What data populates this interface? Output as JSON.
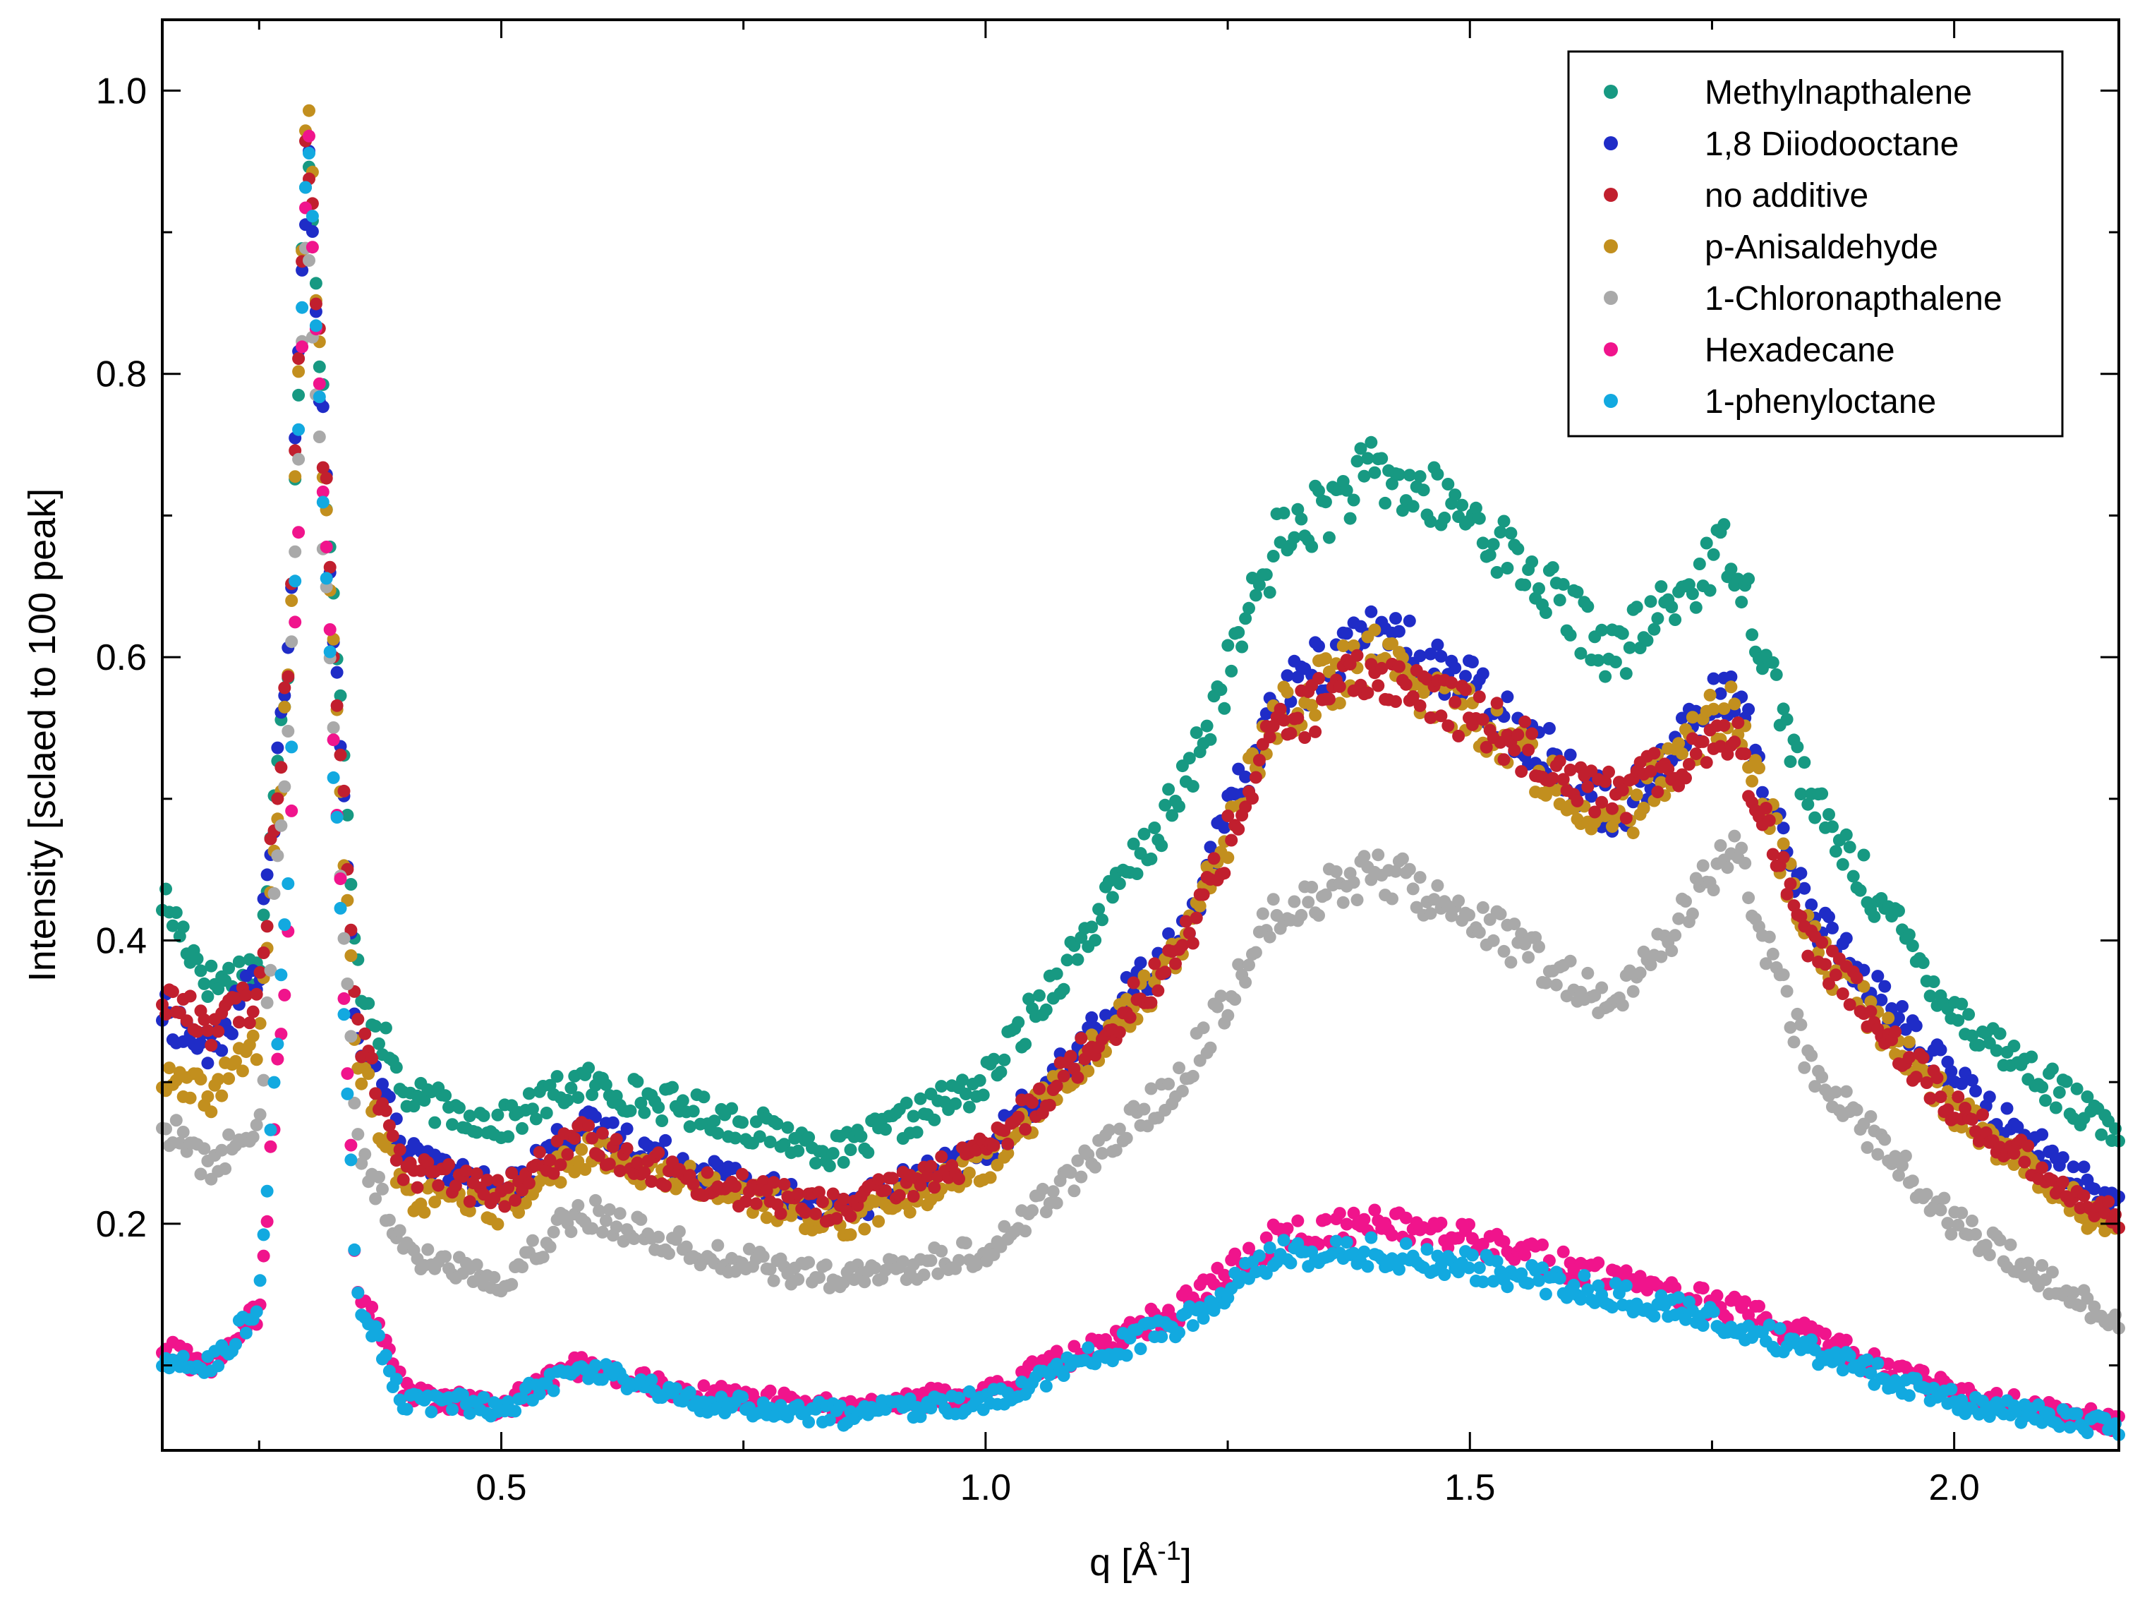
{
  "chart_data": {
    "type": "scatter",
    "title": "",
    "xlabel": {
      "main": "q [Å",
      "sup": "-1",
      "close": "]"
    },
    "ylabel": "Intensity [sclaed to 100 peak]",
    "xlim": [
      0.15,
      2.17
    ],
    "ylim": [
      0.04,
      1.05
    ],
    "xticks": [
      0.5,
      1.0,
      1.5,
      2.0
    ],
    "xtick_labels": [
      "0.5",
      "1.0",
      "1.5",
      "2.0"
    ],
    "xminor": [
      0.25,
      0.75,
      1.25,
      1.75
    ],
    "yticks": [
      0.2,
      0.4,
      0.6,
      0.8,
      1.0
    ],
    "ytick_labels": [
      "0.2",
      "0.4",
      "0.6",
      "0.8",
      "1.0"
    ],
    "yminor": [
      0.1,
      0.3,
      0.5,
      0.7,
      0.9
    ],
    "grid": false,
    "legend_position": "top-right",
    "series": [
      {
        "name": "Methylnapthalene",
        "color": "#179982",
        "x": [
          0.15,
          0.2,
          0.25,
          0.28,
          0.3,
          0.32,
          0.35,
          0.4,
          0.5,
          0.58,
          0.7,
          0.85,
          1.0,
          1.2,
          1.3,
          1.4,
          1.5,
          1.65,
          1.77,
          1.85,
          2.0,
          2.17
        ],
        "y": [
          0.43,
          0.37,
          0.38,
          0.6,
          0.99,
          0.72,
          0.38,
          0.29,
          0.27,
          0.3,
          0.28,
          0.25,
          0.3,
          0.5,
          0.68,
          0.73,
          0.7,
          0.6,
          0.68,
          0.5,
          0.35,
          0.26
        ]
      },
      {
        "name": "1,8 Diiodooctane",
        "color": "#1f2cc7",
        "x": [
          0.15,
          0.2,
          0.25,
          0.28,
          0.3,
          0.32,
          0.35,
          0.4,
          0.5,
          0.58,
          0.7,
          0.85,
          1.0,
          1.2,
          1.3,
          1.4,
          1.5,
          1.65,
          1.77,
          1.85,
          2.0,
          2.17
        ],
        "y": [
          0.35,
          0.32,
          0.38,
          0.6,
          0.97,
          0.7,
          0.34,
          0.25,
          0.22,
          0.27,
          0.24,
          0.21,
          0.25,
          0.4,
          0.57,
          0.62,
          0.58,
          0.49,
          0.58,
          0.42,
          0.3,
          0.21
        ]
      },
      {
        "name": "no additive",
        "color": "#c11f2e",
        "x": [
          0.15,
          0.2,
          0.25,
          0.28,
          0.3,
          0.32,
          0.35,
          0.4,
          0.5,
          0.58,
          0.7,
          0.85,
          1.0,
          1.2,
          1.3,
          1.4,
          1.5,
          1.65,
          1.77,
          1.85,
          2.0,
          2.17
        ],
        "y": [
          0.36,
          0.34,
          0.36,
          0.6,
          0.98,
          0.7,
          0.34,
          0.24,
          0.22,
          0.26,
          0.23,
          0.21,
          0.25,
          0.39,
          0.55,
          0.59,
          0.56,
          0.5,
          0.55,
          0.4,
          0.28,
          0.2
        ]
      },
      {
        "name": "p-Anisaldehyde",
        "color": "#c28f1e",
        "x": [
          0.15,
          0.2,
          0.25,
          0.28,
          0.3,
          0.32,
          0.35,
          0.4,
          0.5,
          0.58,
          0.7,
          0.85,
          1.0,
          1.2,
          1.3,
          1.4,
          1.5,
          1.65,
          1.77,
          1.85,
          2.0,
          2.17
        ],
        "y": [
          0.3,
          0.29,
          0.33,
          0.58,
          1.0,
          0.68,
          0.32,
          0.22,
          0.21,
          0.25,
          0.23,
          0.2,
          0.24,
          0.39,
          0.56,
          0.6,
          0.56,
          0.48,
          0.57,
          0.4,
          0.28,
          0.19
        ]
      },
      {
        "name": "1-Chloronapthalene",
        "color": "#a9a9a9",
        "x": [
          0.15,
          0.2,
          0.25,
          0.28,
          0.3,
          0.32,
          0.35,
          0.4,
          0.5,
          0.58,
          0.7,
          0.85,
          1.0,
          1.2,
          1.3,
          1.4,
          1.5,
          1.65,
          1.77,
          1.85,
          2.0,
          2.17
        ],
        "y": [
          0.27,
          0.24,
          0.27,
          0.56,
          0.92,
          0.63,
          0.26,
          0.18,
          0.16,
          0.21,
          0.18,
          0.16,
          0.18,
          0.3,
          0.42,
          0.45,
          0.42,
          0.35,
          0.47,
          0.31,
          0.2,
          0.13
        ]
      },
      {
        "name": "Hexadecane",
        "color": "#f0148c",
        "x": [
          0.15,
          0.2,
          0.25,
          0.28,
          0.3,
          0.32,
          0.35,
          0.4,
          0.5,
          0.58,
          0.7,
          0.85,
          1.0,
          1.2,
          1.3,
          1.4,
          1.5,
          1.65,
          1.77,
          1.85,
          2.0,
          2.17
        ],
        "y": [
          0.11,
          0.1,
          0.14,
          0.4,
          0.98,
          0.66,
          0.16,
          0.08,
          0.07,
          0.1,
          0.08,
          0.07,
          0.08,
          0.14,
          0.19,
          0.2,
          0.19,
          0.16,
          0.14,
          0.12,
          0.08,
          0.06
        ]
      },
      {
        "name": "1-phenyloctane",
        "color": "#12a9e0",
        "x": [
          0.15,
          0.2,
          0.25,
          0.28,
          0.3,
          0.32,
          0.35,
          0.4,
          0.5,
          0.58,
          0.7,
          0.85,
          1.0,
          1.2,
          1.3,
          1.4,
          1.5,
          1.65,
          1.77,
          1.85,
          2.0,
          2.17
        ],
        "y": [
          0.1,
          0.1,
          0.14,
          0.45,
          1.0,
          0.64,
          0.15,
          0.075,
          0.07,
          0.1,
          0.075,
          0.065,
          0.075,
          0.13,
          0.18,
          0.18,
          0.17,
          0.15,
          0.13,
          0.11,
          0.075,
          0.055
        ]
      }
    ]
  }
}
